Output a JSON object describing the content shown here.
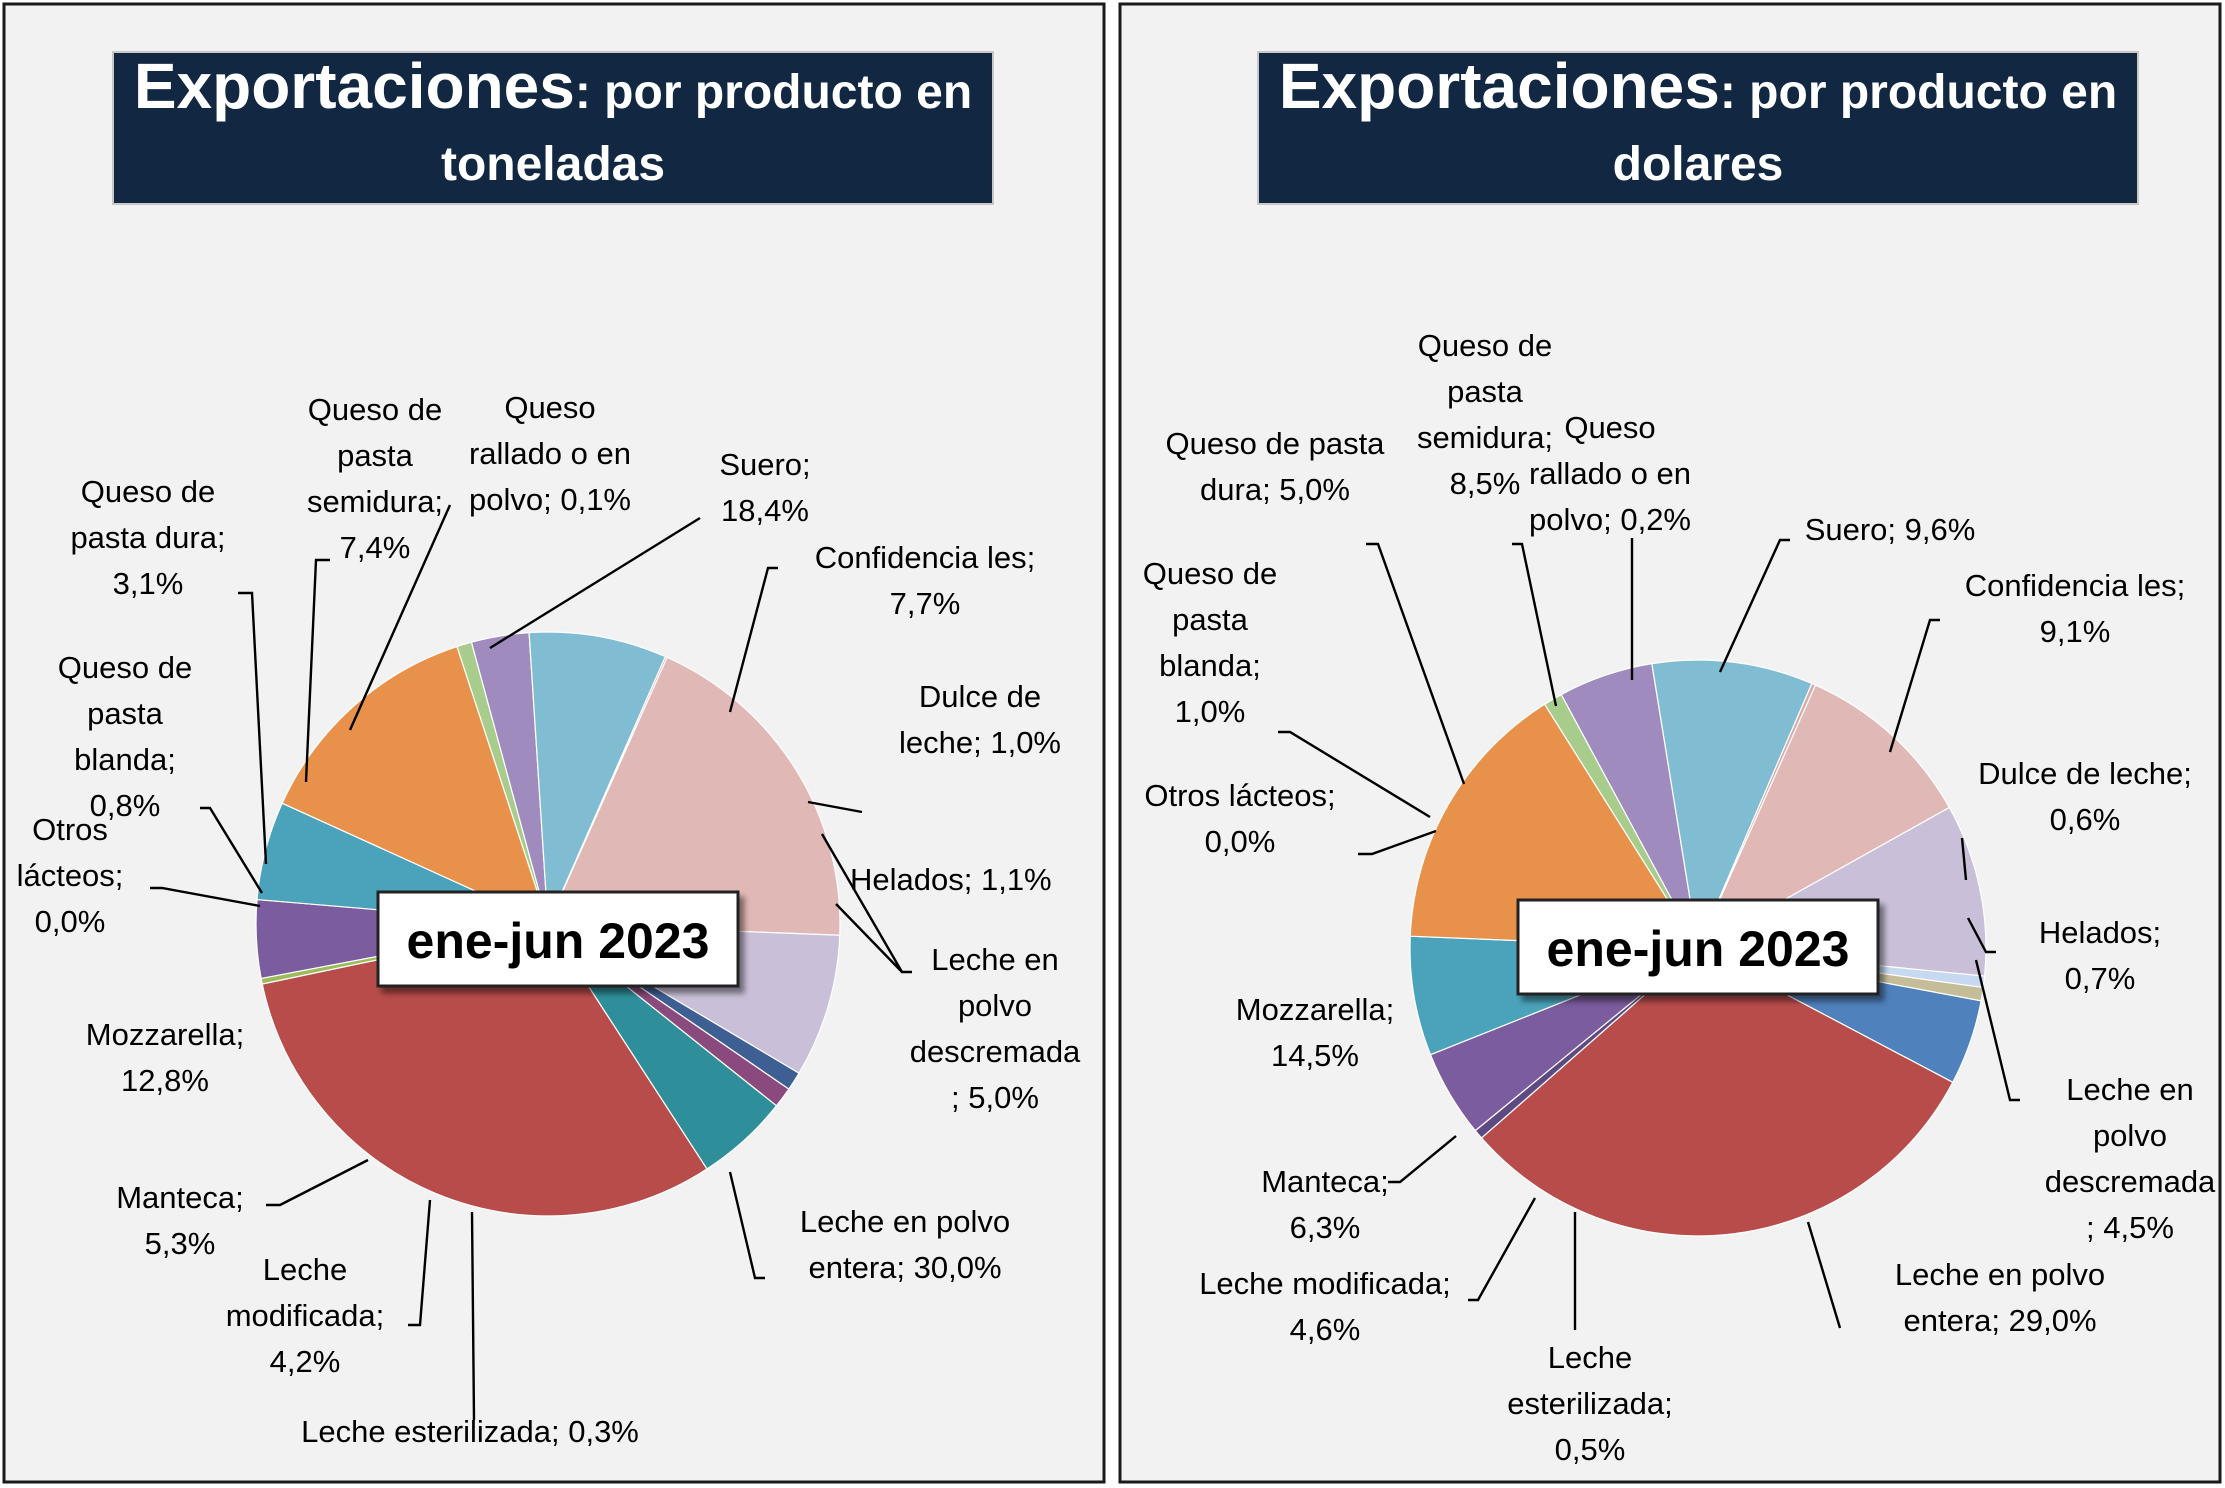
{
  "charts": [
    {
      "title_bold": "Exportaciones",
      "title_rest_1": ": por producto en",
      "title_line2": "toneladas",
      "period": "ene-jun 2023"
    },
    {
      "title_bold": "Exportaciones",
      "title_rest_1": ": por producto en",
      "title_line2": "dolares",
      "period": "ene-jun 2023"
    }
  ],
  "chart_data": [
    {
      "type": "pie",
      "title": "Exportaciones: por producto en toneladas",
      "subtitle": "ene-jun 2023",
      "slices": [
        {
          "name": "Suero",
          "value": 18.4,
          "label": [
            "Suero;",
            "18,4%"
          ],
          "color": "#E0B8B6"
        },
        {
          "name": "Confidencia les",
          "value": 7.7,
          "label": [
            "Confidencia les;",
            "7,7%"
          ],
          "color": "#C9BFD8"
        },
        {
          "name": "Dulce de leche",
          "value": 1.0,
          "label": [
            "Dulce de",
            "leche; 1,0%"
          ],
          "color": "#3D5F94"
        },
        {
          "name": "Helados",
          "value": 1.1,
          "label": [
            "Helados; 1,1%"
          ],
          "color": "#8A4A7E"
        },
        {
          "name": "Leche en polvo descremada",
          "value": 5.0,
          "label": [
            "Leche en",
            "polvo",
            "descremada",
            "; 5,0%"
          ],
          "color": "#2E8F9A"
        },
        {
          "name": "Leche en polvo entera",
          "value": 30.0,
          "label": [
            "Leche en polvo",
            "entera; 30,0%"
          ],
          "color": "#B84C4A"
        },
        {
          "name": "Leche esterilizada",
          "value": 0.3,
          "label": [
            "Leche esterilizada; 0,3%"
          ],
          "color": "#9BBB59"
        },
        {
          "name": "Leche modificada",
          "value": 4.2,
          "label": [
            "Leche",
            "modificada;",
            "4,2%"
          ],
          "color": "#7B5C9E"
        },
        {
          "name": "Manteca",
          "value": 5.3,
          "label": [
            "Manteca;",
            "5,3%"
          ],
          "color": "#4AA3BA"
        },
        {
          "name": "Mozzarella",
          "value": 12.8,
          "label": [
            "Mozzarella;",
            "12,8%"
          ],
          "color": "#E8914A"
        },
        {
          "name": "Otros lácteos",
          "value": 0.0,
          "label": [
            "Otros",
            "lácteos;",
            "0,0%"
          ],
          "color": "#B5C98C"
        },
        {
          "name": "Queso de pasta blanda",
          "value": 0.8,
          "label": [
            "Queso de",
            "pasta",
            "blanda;",
            "0,8%"
          ],
          "color": "#A8CC8C"
        },
        {
          "name": "Queso de pasta dura",
          "value": 3.1,
          "label": [
            "Queso de",
            "pasta dura;",
            "3,1%"
          ],
          "color": "#A08BBE"
        },
        {
          "name": "Queso de pasta semidura",
          "value": 7.4,
          "label": [
            "Queso de",
            "pasta",
            "semidura;",
            "7,4%"
          ],
          "color": "#80BDD3"
        },
        {
          "name": "Queso rallado o en polvo",
          "value": 0.1,
          "label": [
            "Queso",
            "rallado o en",
            "polvo; 0,1%"
          ],
          "color": "#D9A8A8"
        }
      ]
    },
    {
      "type": "pie",
      "title": "Exportaciones: por producto en dolares",
      "subtitle": "ene-jun 2023",
      "slices": [
        {
          "name": "Suero",
          "value": 9.6,
          "label": [
            "Suero; 9,6%"
          ],
          "color": "#E0B8B6"
        },
        {
          "name": "Confidencia les",
          "value": 9.1,
          "label": [
            "Confidencia les;",
            "9,1%"
          ],
          "color": "#C9BFD8"
        },
        {
          "name": "Dulce de leche",
          "value": 0.6,
          "label": [
            "Dulce de leche;",
            "0,6%"
          ],
          "color": "#C6D9F0"
        },
        {
          "name": "Helados",
          "value": 0.7,
          "label": [
            "Helados;",
            "0,7%"
          ],
          "color": "#C4BD97"
        },
        {
          "name": "Leche en polvo descremada",
          "value": 4.5,
          "label": [
            "Leche en",
            "polvo",
            "descremada",
            "; 4,5%"
          ],
          "color": "#4F81BD"
        },
        {
          "name": "Leche en polvo entera",
          "value": 29.0,
          "label": [
            "Leche en polvo",
            "entera; 29,0%"
          ],
          "color": "#B84C4A"
        },
        {
          "name": "Leche esterilizada",
          "value": 0.5,
          "label": [
            "Leche",
            "esterilizada;",
            "0,5%"
          ],
          "color": "#5E4A82"
        },
        {
          "name": "Leche modificada",
          "value": 4.6,
          "label": [
            "Leche modificada;",
            "4,6%"
          ],
          "color": "#7B5C9E"
        },
        {
          "name": "Manteca",
          "value": 6.3,
          "label": [
            "Manteca;",
            "6,3%"
          ],
          "color": "#4AA3BA"
        },
        {
          "name": "Mozzarella",
          "value": 14.5,
          "label": [
            "Mozzarella;",
            "14,5%"
          ],
          "color": "#E8914A"
        },
        {
          "name": "Otros lácteos",
          "value": 0.0,
          "label": [
            "Otros lácteos;",
            "0,0%"
          ],
          "color": "#B5C98C"
        },
        {
          "name": "Queso de pasta blanda",
          "value": 1.0,
          "label": [
            "Queso de",
            "pasta",
            "blanda;",
            "1,0%"
          ],
          "color": "#A8CC8C"
        },
        {
          "name": "Queso de pasta dura",
          "value": 5.0,
          "label": [
            "Queso de pasta",
            "dura; 5,0%"
          ],
          "color": "#A08BBE"
        },
        {
          "name": "Queso de pasta semidura",
          "value": 8.5,
          "label": [
            "Queso de",
            "pasta",
            "semidura;",
            "8,5%"
          ],
          "color": "#80BDD3"
        },
        {
          "name": "Queso rallado o en polvo",
          "value": 0.2,
          "label": [
            "Queso",
            "rallado o en",
            "polvo; 0,2%"
          ],
          "color": "#D9A8A8"
        }
      ]
    }
  ]
}
